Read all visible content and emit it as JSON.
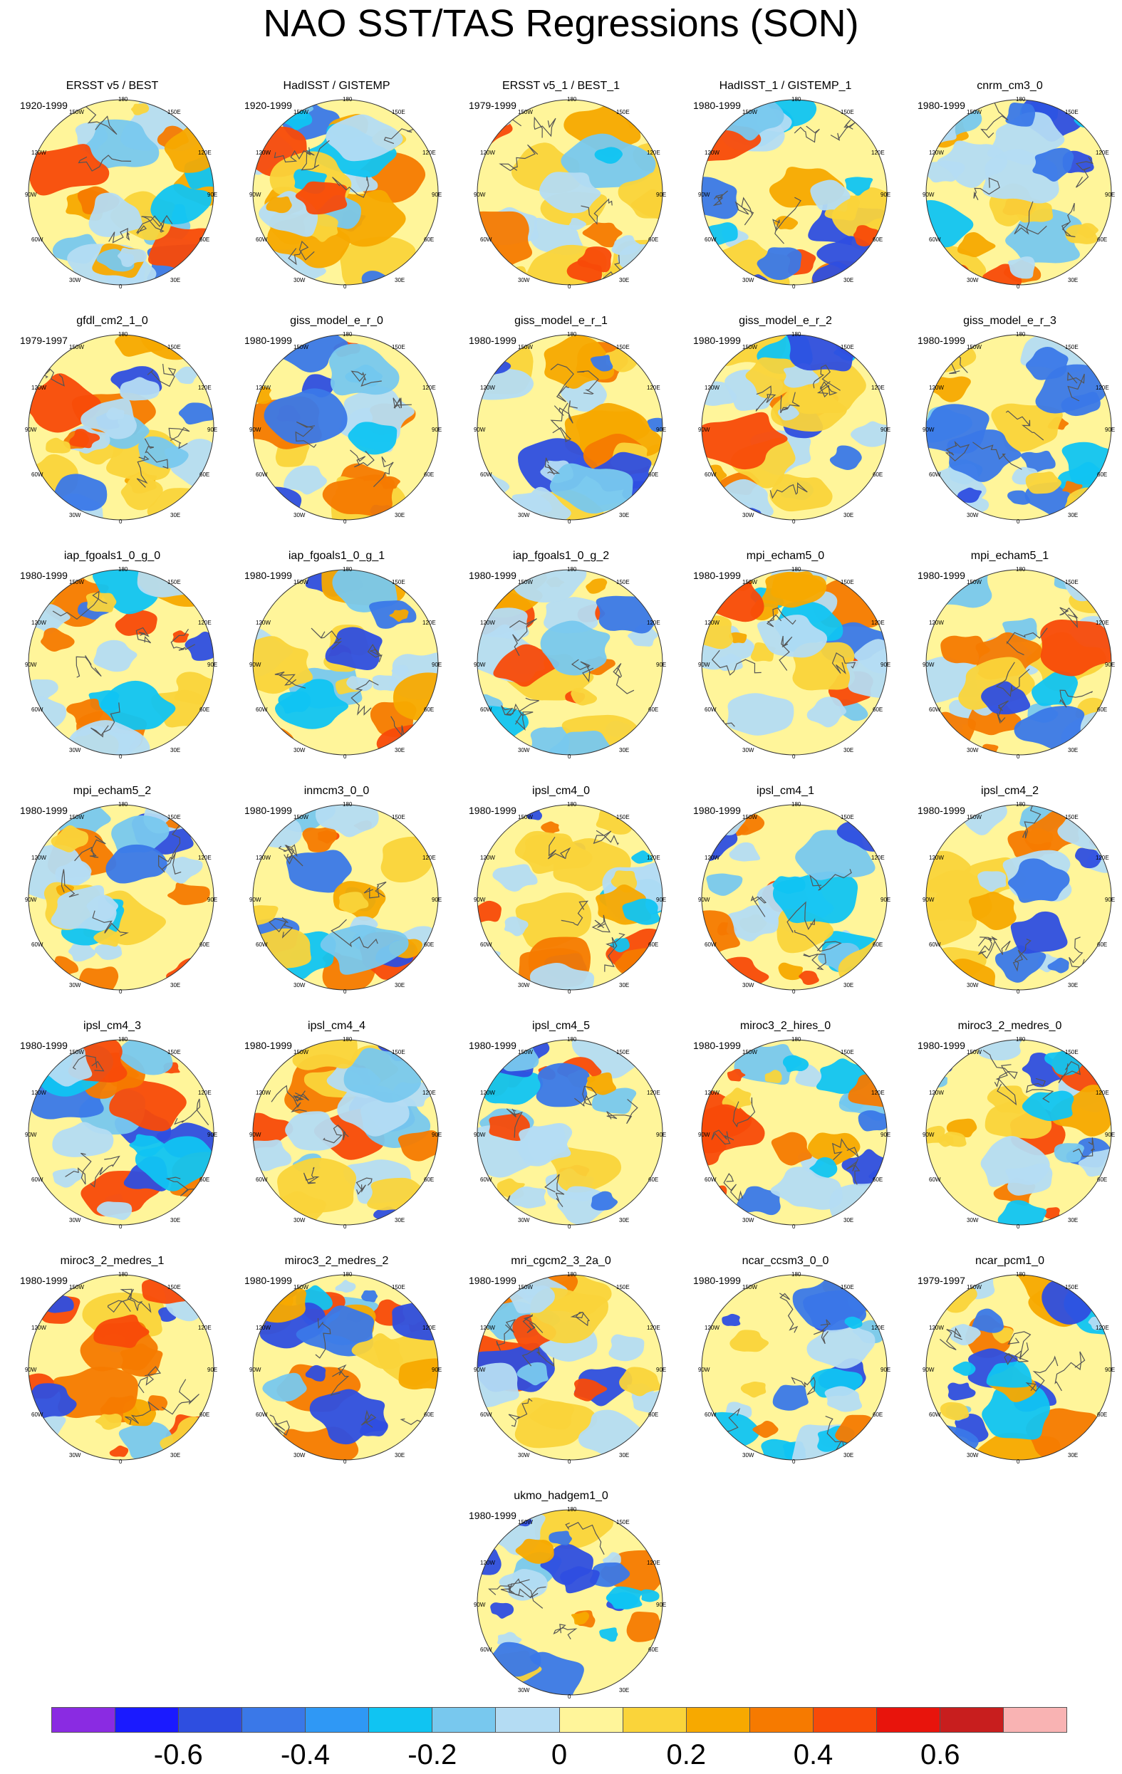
{
  "title": "NAO SST/TAS Regressions (SON)",
  "map_labels": {
    "lon_180": "180",
    "lon_150w": "150W",
    "lon_150e": "150E",
    "lon_120w": "120W",
    "lon_120e": "120E",
    "lon_90w": "90W",
    "lon_90e": "90E",
    "lon_60w": "60W",
    "lon_60e": "60E",
    "lon_30w": "30W",
    "lon_30e": "30E",
    "lon_0": "0"
  },
  "panels": [
    {
      "name": "ERSST v5 / BEST",
      "period": "1920-1999"
    },
    {
      "name": "HadISST / GISTEMP",
      "period": "1920-1999"
    },
    {
      "name": "ERSST v5_1 / BEST_1",
      "period": "1979-1999"
    },
    {
      "name": "HadISST_1 / GISTEMP_1",
      "period": "1980-1999"
    },
    {
      "name": "cnrm_cm3_0",
      "period": "1980-1999"
    },
    {
      "name": "gfdl_cm2_1_0",
      "period": "1979-1997"
    },
    {
      "name": "giss_model_e_r_0",
      "period": "1980-1999"
    },
    {
      "name": "giss_model_e_r_1",
      "period": "1980-1999"
    },
    {
      "name": "giss_model_e_r_2",
      "period": "1980-1999"
    },
    {
      "name": "giss_model_e_r_3",
      "period": "1980-1999"
    },
    {
      "name": "iap_fgoals1_0_g_0",
      "period": "1980-1999"
    },
    {
      "name": "iap_fgoals1_0_g_1",
      "period": "1980-1999"
    },
    {
      "name": "iap_fgoals1_0_g_2",
      "period": "1980-1999"
    },
    {
      "name": "mpi_echam5_0",
      "period": "1980-1999"
    },
    {
      "name": "mpi_echam5_1",
      "period": "1980-1999"
    },
    {
      "name": "mpi_echam5_2",
      "period": "1980-1999"
    },
    {
      "name": "inmcm3_0_0",
      "period": "1980-1999"
    },
    {
      "name": "ipsl_cm4_0",
      "period": "1980-1999"
    },
    {
      "name": "ipsl_cm4_1",
      "period": "1980-1999"
    },
    {
      "name": "ipsl_cm4_2",
      "period": "1980-1999"
    },
    {
      "name": "ipsl_cm4_3",
      "period": "1980-1999"
    },
    {
      "name": "ipsl_cm4_4",
      "period": "1980-1999"
    },
    {
      "name": "ipsl_cm4_5",
      "period": "1980-1999"
    },
    {
      "name": "miroc3_2_hires_0",
      "period": "1980-1999"
    },
    {
      "name": "miroc3_2_medres_0",
      "period": "1980-1999"
    },
    {
      "name": "miroc3_2_medres_1",
      "period": "1980-1999"
    },
    {
      "name": "miroc3_2_medres_2",
      "period": "1980-1999"
    },
    {
      "name": "mri_cgcm2_3_2a_0",
      "period": "1980-1999"
    },
    {
      "name": "ncar_ccsm3_0_0",
      "period": "1980-1999"
    },
    {
      "name": "ncar_pcm1_0",
      "period": "1979-1997"
    },
    {
      "name": "ukmo_hadgem1_0",
      "period": "1980-1999"
    }
  ],
  "colorbar": {
    "colors": [
      "#8a2be2",
      "#1a1aff",
      "#2e4ee0",
      "#3a78e8",
      "#2f98f5",
      "#10c4f2",
      "#78c8ee",
      "#b4dcf3",
      "#fff59a",
      "#fad43a",
      "#f7a900",
      "#f67a00",
      "#f84a08",
      "#e8140c",
      "#c81e1e",
      "#f9b3b3"
    ],
    "ticks": [
      "-0.6",
      "-0.4",
      "-0.2",
      "0",
      "0.2",
      "0.4",
      "0.6"
    ]
  }
}
